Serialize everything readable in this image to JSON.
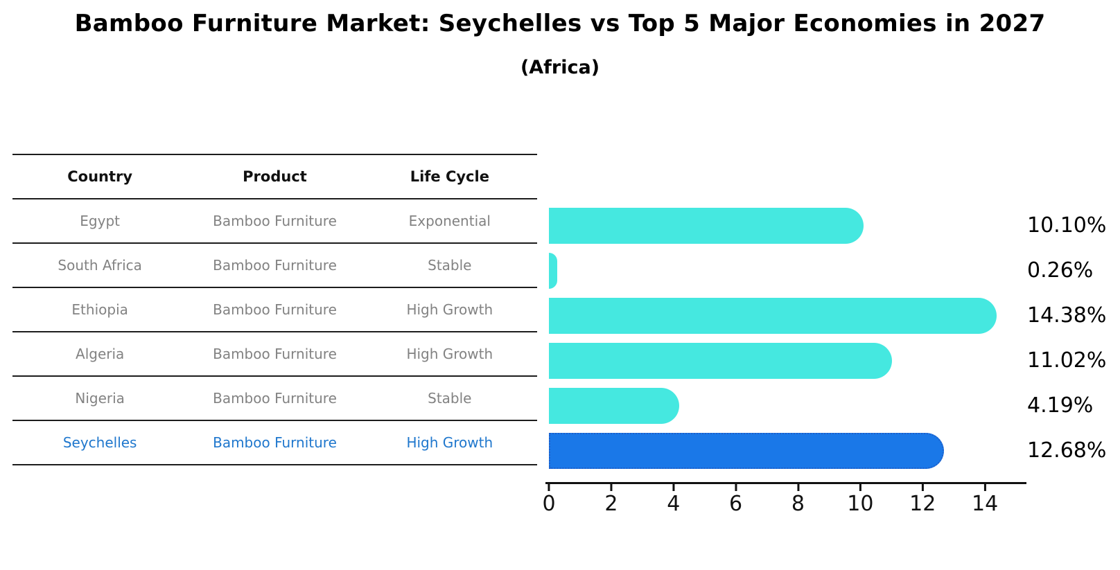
{
  "header": {
    "title": "Bamboo Furniture Market: Seychelles vs Top 5 Major Economies in 2027",
    "subtitle": "(Africa)"
  },
  "table": {
    "headers": [
      "Country",
      "Product",
      "Life Cycle"
    ],
    "rows": [
      {
        "country": "Egypt",
        "product": "Bamboo Furniture",
        "life_cycle": "Exponential"
      },
      {
        "country": "South Africa",
        "product": "Bamboo Furniture",
        "life_cycle": "Stable"
      },
      {
        "country": "Ethiopia",
        "product": "Bamboo Furniture",
        "life_cycle": "High Growth"
      },
      {
        "country": "Algeria",
        "product": "Bamboo Furniture",
        "life_cycle": "High Growth"
      },
      {
        "country": "Nigeria",
        "product": "Bamboo Furniture",
        "life_cycle": "Stable"
      },
      {
        "country": "Seychelles",
        "product": "Bamboo Furniture",
        "life_cycle": "High Growth"
      }
    ]
  },
  "chart_data": {
    "type": "bar",
    "orientation": "horizontal",
    "title": "Bamboo Furniture Market: Seychelles vs Top 5 Major Economies in 2027",
    "subtitle": "(Africa)",
    "categories": [
      "Egypt",
      "South Africa",
      "Ethiopia",
      "Algeria",
      "Nigeria",
      "Seychelles"
    ],
    "values": [
      10.1,
      0.26,
      14.38,
      11.02,
      4.19,
      12.68
    ],
    "value_labels": [
      "10.10%",
      "0.26%",
      "14.38%",
      "11.02%",
      "4.19%",
      "12.68%"
    ],
    "x_ticks": [
      0,
      2,
      4,
      6,
      8,
      10,
      12,
      14
    ],
    "xlim": [
      0,
      15.2
    ],
    "grid": false,
    "legend": false,
    "highlight_index": 5,
    "bar_color": "#45e8e0",
    "highlight_color": "#1a78e8",
    "highlight_border_color": "#1e5fc9",
    "highlight_text_color": "#1f77cd"
  },
  "colors": {
    "background": "#ffffff",
    "table_text": "#828282",
    "header_text": "#111111",
    "rule_line": "#1c1c1c",
    "axis": "#111111",
    "value_label_text": "#000000"
  }
}
